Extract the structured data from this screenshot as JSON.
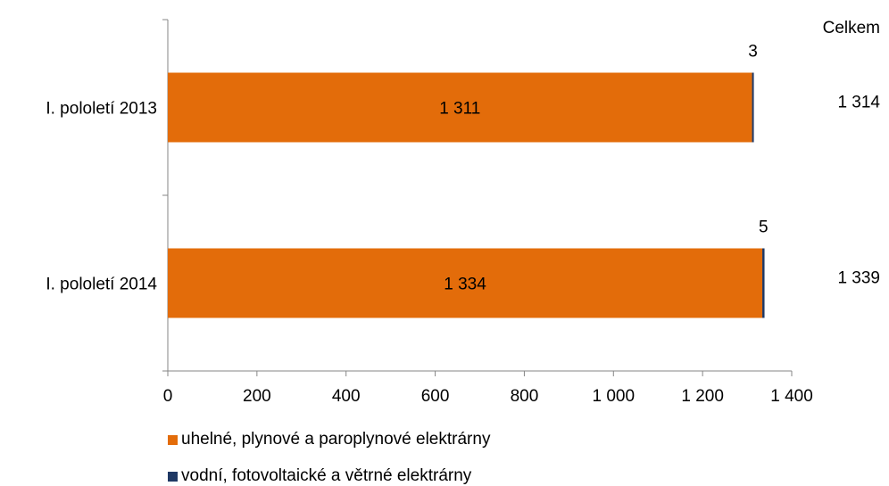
{
  "chart_data": {
    "type": "bar",
    "orientation": "horizontal",
    "stacked": true,
    "categories": [
      "I. pololetí 2013",
      "I. pololetí 2014"
    ],
    "series": [
      {
        "name": "uhelné, plynové a paroplynové elektrárny",
        "values": [
          1311,
          1334
        ],
        "labels": [
          "1 311",
          "1 334"
        ],
        "color": "#E36C0A"
      },
      {
        "name": "vodní, fotovoltaické a větrné elektrárny",
        "values": [
          3,
          5
        ],
        "labels": [
          "3",
          "5"
        ],
        "color": "#1F3864"
      }
    ],
    "totals_header": "Celkem",
    "totals": [
      "1 314",
      "1 339"
    ],
    "xlim": [
      0,
      1400
    ],
    "xticks": [
      0,
      200,
      400,
      600,
      800,
      1000,
      1200,
      1400
    ],
    "xtick_labels": [
      "0",
      "200",
      "400",
      "600",
      "800",
      "1 000",
      "1 200",
      "1 400"
    ],
    "grid": false,
    "legend_position": "bottom"
  }
}
